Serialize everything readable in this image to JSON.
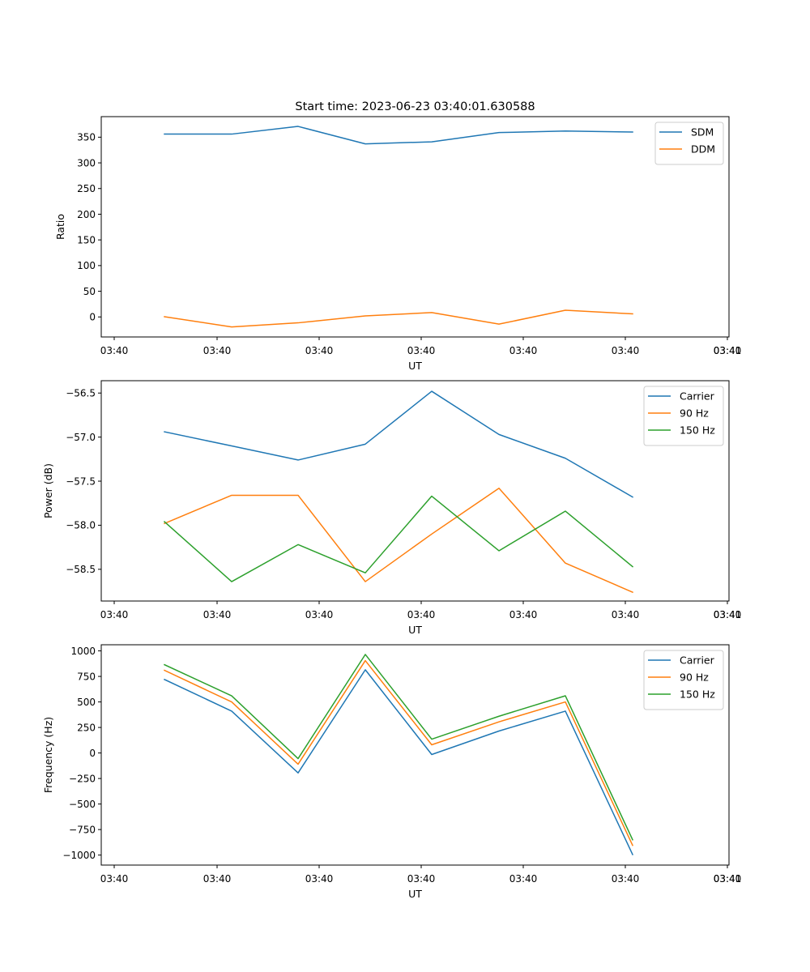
{
  "figure": {
    "title": "Start time: 2023-06-23 03:40:01.630588"
  },
  "chart_data": [
    {
      "type": "line",
      "title": "Start time: 2023-06-23 03:40:01.630588",
      "xlabel": "UT",
      "ylabel": "Ratio",
      "x_tick_labels": [
        "03:40",
        "03:40",
        "03:40",
        "03:40",
        "03:40",
        "03:40",
        "03:40",
        "03:41"
      ],
      "ylim": [
        -39,
        390
      ],
      "y_ticks": [
        0,
        50,
        100,
        150,
        200,
        250,
        300,
        350
      ],
      "grid": false,
      "legend_position": "top-right",
      "series": [
        {
          "name": "SDM",
          "color": "#1f77b4",
          "values": [
            356,
            356,
            371,
            337,
            341,
            359,
            362,
            360
          ]
        },
        {
          "name": "DDM",
          "color": "#ff7f0e",
          "values": [
            0.5,
            -19.5,
            -11.5,
            2,
            8.5,
            -14,
            13,
            6
          ]
        }
      ]
    },
    {
      "type": "line",
      "title": "",
      "xlabel": "UT",
      "ylabel": "Power (dB)",
      "x_tick_labels": [
        "03:40",
        "03:40",
        "03:40",
        "03:40",
        "03:40",
        "03:40",
        "03:40",
        "03:41"
      ],
      "ylim": [
        -58.86,
        -56.36
      ],
      "y_ticks": [
        -58.5,
        -58.0,
        -57.5,
        -57.0,
        -56.5
      ],
      "y_tick_labels": [
        "−58.5",
        "−58.0",
        "−57.5",
        "−57.0",
        "−56.5"
      ],
      "grid": false,
      "legend_position": "top-right",
      "series": [
        {
          "name": "Carrier",
          "color": "#1f77b4",
          "values": [
            -56.94,
            -57.1,
            -57.26,
            -57.08,
            -56.48,
            -56.97,
            -57.24,
            -57.68
          ]
        },
        {
          "name": "90 Hz",
          "color": "#ff7f0e",
          "values": [
            -57.98,
            -57.66,
            -57.66,
            -58.64,
            -58.1,
            -57.58,
            -58.43,
            -58.76
          ]
        },
        {
          "name": "150 Hz",
          "color": "#2ca02c",
          "values": [
            -57.96,
            -58.64,
            -58.22,
            -58.54,
            -57.67,
            -58.29,
            -57.84,
            -58.47
          ]
        }
      ]
    },
    {
      "type": "line",
      "title": "",
      "xlabel": "UT",
      "ylabel": "Frequency (Hz)",
      "x_tick_labels": [
        "03:40",
        "03:40",
        "03:40",
        "03:40",
        "03:40",
        "03:40",
        "03:40",
        "03:41"
      ],
      "ylim": [
        -1098,
        1060
      ],
      "y_ticks": [
        -1000,
        -750,
        -500,
        -250,
        0,
        250,
        500,
        750,
        1000
      ],
      "y_tick_labels": [
        "−1000",
        "−750",
        "−500",
        "−250",
        "0",
        "250",
        "500",
        "750",
        "1000"
      ],
      "grid": false,
      "legend_position": "top-right",
      "series": [
        {
          "name": "Carrier",
          "color": "#1f77b4",
          "values": [
            720,
            410,
            -195,
            815,
            -15,
            215,
            410,
            -995
          ]
        },
        {
          "name": "90 Hz",
          "color": "#ff7f0e",
          "values": [
            810,
            500,
            -110,
            905,
            80,
            305,
            500,
            -905
          ]
        },
        {
          "name": "150 Hz",
          "color": "#2ca02c",
          "values": [
            865,
            560,
            -55,
            965,
            135,
            360,
            560,
            -850
          ]
        }
      ]
    }
  ]
}
